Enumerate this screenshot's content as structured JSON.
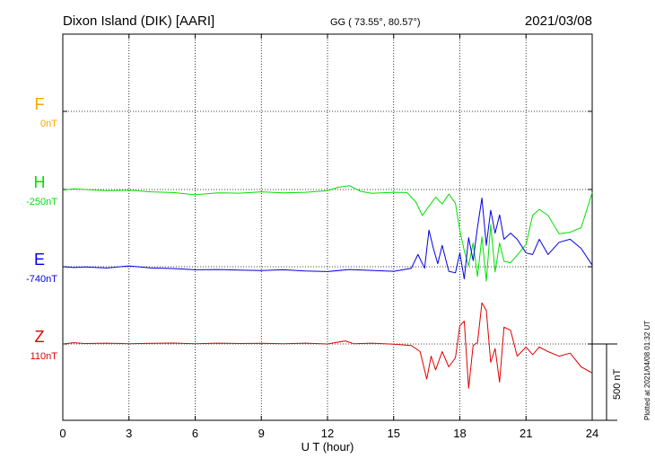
{
  "header": {
    "station": "Dixon Island (DIK)  [AARI]",
    "coords": "GG ( 73.55°,  80.57°)",
    "date": "2021/03/08"
  },
  "scale_label": "500 nT",
  "footer": "Plotted at 2021/04/08 01:32 UT",
  "chart_data": {
    "type": "line",
    "title": "Dixon Island (DIK)  [AARI]",
    "xlabel": "U T (hour)",
    "ylabel": "",
    "xlim": [
      0,
      24
    ],
    "xticks": [
      "0",
      "3",
      "6",
      "9",
      "12",
      "15",
      "18",
      "21",
      "24"
    ],
    "grid": true,
    "scale_bar_nT": 500,
    "series": [
      {
        "name": "F",
        "baseline_label": "0nT",
        "color": "#ffa500",
        "x": [],
        "y": []
      },
      {
        "name": "H",
        "baseline_label": "-250nT",
        "color": "#00e000",
        "x": [
          0,
          0.5,
          1,
          2,
          3,
          4,
          5,
          6,
          7,
          8,
          9,
          10,
          11,
          12,
          12.5,
          13,
          13.5,
          14,
          15,
          15.6,
          16,
          16.3,
          16.6,
          16.9,
          17.2,
          17.5,
          17.8,
          18.0,
          18.2,
          18.4,
          18.6,
          18.8,
          19.0,
          19.2,
          19.4,
          19.6,
          19.8,
          20.0,
          20.3,
          20.6,
          21,
          21.3,
          21.6,
          22,
          22.5,
          23,
          23.5,
          24
        ],
        "y": [
          -255,
          -245,
          -250,
          -258,
          -255,
          -265,
          -270,
          -285,
          -272,
          -274,
          -265,
          -272,
          -268,
          -258,
          -235,
          -225,
          -262,
          -275,
          -268,
          -270,
          -330,
          -420,
          -360,
          -300,
          -345,
          -280,
          -340,
          -520,
          -650,
          -750,
          -600,
          -820,
          -560,
          -850,
          -480,
          -790,
          -600,
          -720,
          -730,
          -680,
          -610,
          -420,
          -380,
          -420,
          -540,
          -530,
          -500,
          -270
        ]
      },
      {
        "name": "E",
        "baseline_label": "-740nT",
        "color": "#0000e0",
        "x": [
          0,
          0.5,
          1,
          2,
          3,
          4,
          5,
          6,
          7,
          8,
          9,
          10,
          11,
          12,
          13,
          14,
          15,
          15.8,
          16.1,
          16.4,
          16.6,
          16.8,
          17.0,
          17.2,
          17.5,
          17.8,
          18.0,
          18.2,
          18.4,
          18.6,
          18.8,
          19.0,
          19.2,
          19.4,
          19.6,
          19.8,
          20.0,
          20.3,
          20.6,
          21,
          21.3,
          21.6,
          22,
          22.5,
          23,
          23.5,
          24
        ],
        "y": [
          -740,
          -745,
          -742,
          -748,
          -735,
          -748,
          -752,
          -760,
          -758,
          -762,
          -765,
          -760,
          -768,
          -772,
          -758,
          -764,
          -770,
          -750,
          -660,
          -750,
          -500,
          -620,
          -720,
          -600,
          -770,
          -780,
          -650,
          -820,
          -550,
          -700,
          -480,
          -290,
          -600,
          -370,
          -520,
          -400,
          -560,
          -520,
          -560,
          -650,
          -660,
          -560,
          -660,
          -580,
          -560,
          -620,
          -730
        ]
      },
      {
        "name": "Z",
        "baseline_label": "110nT",
        "color": "#e00000",
        "x": [
          0,
          0.5,
          1,
          2,
          3,
          4,
          5,
          6,
          7,
          8,
          9,
          10,
          11,
          12,
          12.8,
          13.2,
          14,
          15,
          15.8,
          16.2,
          16.5,
          16.7,
          16.9,
          17.2,
          17.5,
          17.8,
          18.0,
          18.2,
          18.4,
          18.6,
          18.8,
          19.0,
          19.2,
          19.4,
          19.6,
          19.8,
          20.0,
          20.3,
          20.6,
          21,
          21.3,
          21.6,
          22,
          22.5,
          23,
          23.5,
          24
        ],
        "y": [
          110,
          118,
          113,
          115,
          112,
          114,
          116,
          112,
          115,
          113,
          114,
          112,
          115,
          110,
          130,
          112,
          115,
          108,
          100,
          60,
          -120,
          30,
          -60,
          60,
          -40,
          20,
          230,
          260,
          -180,
          100,
          120,
          380,
          330,
          -10,
          80,
          -140,
          220,
          200,
          30,
          90,
          40,
          90,
          60,
          30,
          50,
          -40,
          -80
        ]
      }
    ]
  }
}
